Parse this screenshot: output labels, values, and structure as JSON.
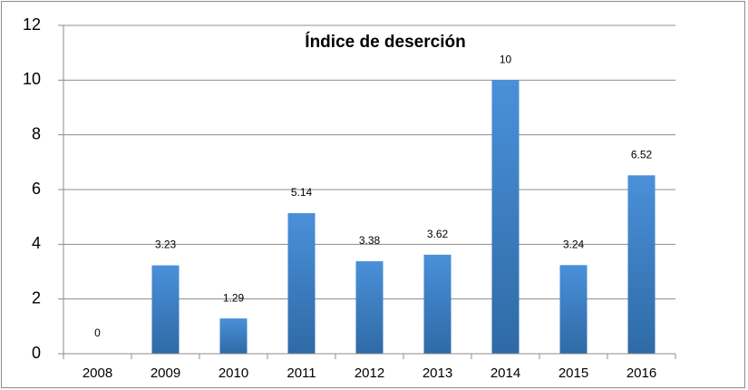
{
  "chart_data": {
    "type": "bar",
    "title": "Índice de deserción",
    "categories": [
      "2008",
      "2009",
      "2010",
      "2011",
      "2012",
      "2013",
      "2014",
      "2015",
      "2016"
    ],
    "values": [
      0,
      3.23,
      1.29,
      5.14,
      3.38,
      3.62,
      10,
      3.24,
      6.52
    ],
    "color": "#4a90d9",
    "ylim": [
      0,
      12
    ],
    "yticks": [
      0,
      2,
      4,
      6,
      8,
      10,
      12
    ],
    "grid": true
  }
}
